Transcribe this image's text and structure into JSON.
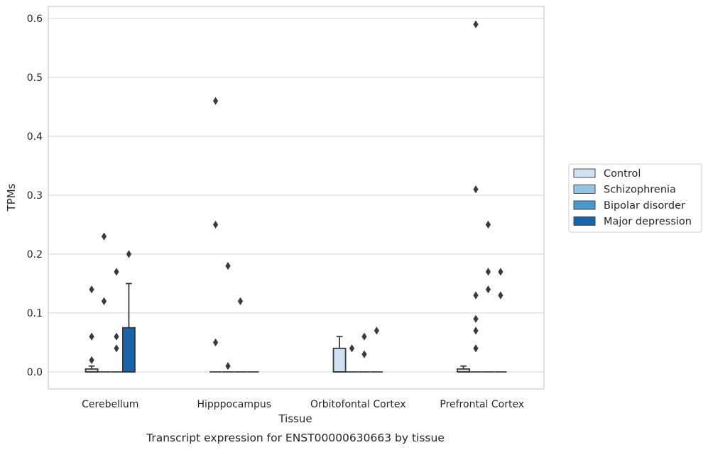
{
  "chart_data": {
    "type": "box",
    "caption": "Transcript expression for ENST00000630663 by tissue",
    "xlabel": "Tissue",
    "ylabel": "TPMs",
    "ylim": [
      -0.029,
      0.62
    ],
    "yticks": [
      0.0,
      0.1,
      0.2,
      0.3,
      0.4,
      0.5,
      0.6
    ],
    "ytick_labels": [
      "0.0",
      "0.1",
      "0.2",
      "0.3",
      "0.4",
      "0.5",
      "0.6"
    ],
    "grid": true,
    "legend_position": "right",
    "categories": [
      "Cerebellum",
      "Hipppocampus",
      "Orbitofontal Cortex",
      "Prefrontal Cortex"
    ],
    "series": [
      {
        "name": "Control",
        "color": "#d0e1f2",
        "boxes": [
          {
            "q1": 0.0,
            "median": 0.0,
            "q3": 0.005,
            "whisker_low": 0.0,
            "whisker_high": 0.01,
            "outliers": [
              0.02,
              0.06,
              0.14
            ]
          },
          {
            "q1": 0.0,
            "median": 0.0,
            "q3": 0.0,
            "whisker_low": 0.0,
            "whisker_high": 0.0,
            "outliers": [
              0.05,
              0.25,
              0.46
            ]
          },
          {
            "q1": 0.0,
            "median": 0.0,
            "q3": 0.04,
            "whisker_low": 0.0,
            "whisker_high": 0.06,
            "outliers": []
          },
          {
            "q1": 0.0,
            "median": 0.0,
            "q3": 0.005,
            "whisker_low": 0.0,
            "whisker_high": 0.01,
            "outliers": []
          }
        ]
      },
      {
        "name": "Schizophrenia",
        "color": "#94c4df",
        "boxes": [
          {
            "q1": 0.0,
            "median": 0.0,
            "q3": 0.0,
            "whisker_low": 0.0,
            "whisker_high": 0.0,
            "outliers": [
              0.12,
              0.23
            ]
          },
          {
            "q1": 0.0,
            "median": 0.0,
            "q3": 0.0,
            "whisker_low": 0.0,
            "whisker_high": 0.0,
            "outliers": [
              0.01,
              0.18
            ]
          },
          {
            "q1": 0.0,
            "median": 0.0,
            "q3": 0.0,
            "whisker_low": 0.0,
            "whisker_high": 0.0,
            "outliers": [
              0.04
            ]
          },
          {
            "q1": 0.0,
            "median": 0.0,
            "q3": 0.0,
            "whisker_low": 0.0,
            "whisker_high": 0.0,
            "outliers": [
              0.04,
              0.07,
              0.09,
              0.13,
              0.31,
              0.59
            ]
          }
        ]
      },
      {
        "name": "Bipolar disorder",
        "color": "#4a98c9",
        "boxes": [
          {
            "q1": 0.0,
            "median": 0.0,
            "q3": 0.0,
            "whisker_low": 0.0,
            "whisker_high": 0.0,
            "outliers": [
              0.04,
              0.06,
              0.17
            ]
          },
          {
            "q1": 0.0,
            "median": 0.0,
            "q3": 0.0,
            "whisker_low": 0.0,
            "whisker_high": 0.0,
            "outliers": [
              0.12
            ]
          },
          {
            "q1": 0.0,
            "median": 0.0,
            "q3": 0.0,
            "whisker_low": 0.0,
            "whisker_high": 0.0,
            "outliers": [
              0.03,
              0.06
            ]
          },
          {
            "q1": 0.0,
            "median": 0.0,
            "q3": 0.0,
            "whisker_low": 0.0,
            "whisker_high": 0.0,
            "outliers": [
              0.14,
              0.17,
              0.25
            ]
          }
        ]
      },
      {
        "name": "Major depression",
        "color": "#1764ab",
        "boxes": [
          {
            "q1": 0.0,
            "median": 0.0,
            "q3": 0.075,
            "whisker_low": 0.0,
            "whisker_high": 0.15,
            "outliers": [
              0.2
            ]
          },
          {
            "q1": 0.0,
            "median": 0.0,
            "q3": 0.0,
            "whisker_low": 0.0,
            "whisker_high": 0.0,
            "outliers": []
          },
          {
            "q1": 0.0,
            "median": 0.0,
            "q3": 0.0,
            "whisker_low": 0.0,
            "whisker_high": 0.0,
            "outliers": [
              0.07
            ]
          },
          {
            "q1": 0.0,
            "median": 0.0,
            "q3": 0.0,
            "whisker_low": 0.0,
            "whisker_high": 0.0,
            "outliers": [
              0.13,
              0.17
            ]
          }
        ]
      }
    ]
  }
}
